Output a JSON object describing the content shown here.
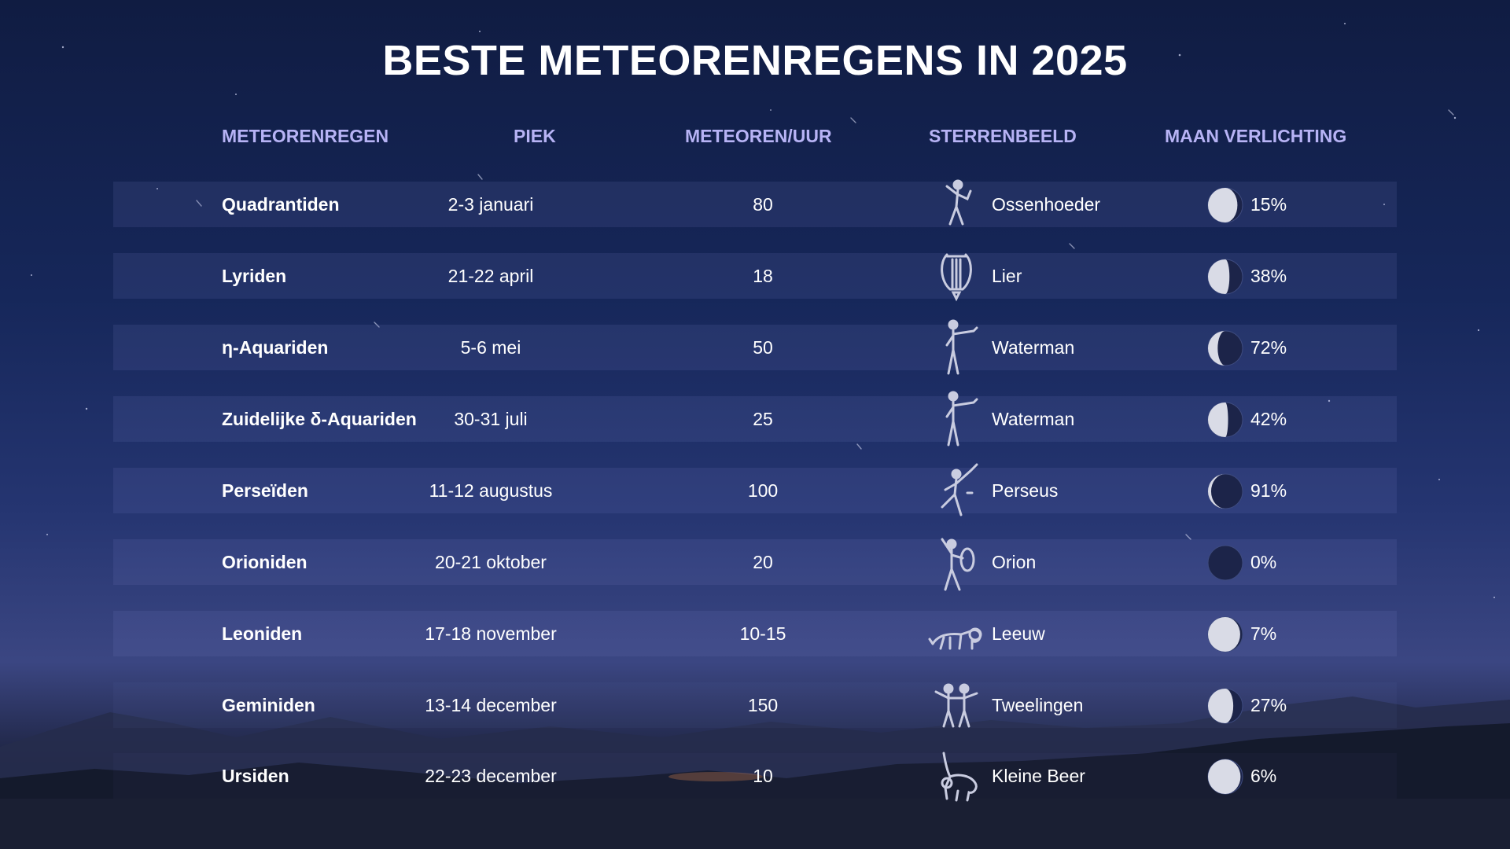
{
  "title": "BESTE METEORENREGENS IN 2025",
  "columns": {
    "shower": "METEORENREGEN",
    "peak": "PIEK",
    "rate": "METEOREN/UUR",
    "constellation": "STERRENBEELD",
    "moon": "MAAN VERLICHTING"
  },
  "colors": {
    "header": "#b7b3f5",
    "text": "#ffffff",
    "row_band": "#3a4784"
  },
  "rows": [
    {
      "name": "Quadrantiden",
      "peak": "2-3 januari",
      "rate": "80",
      "constellation": "Ossenhoeder",
      "icon": "bootes-figure-icon",
      "moon": "15%",
      "moon_fraction": 0.15
    },
    {
      "name": "Lyriden",
      "peak": "21-22 april",
      "rate": "18",
      "constellation": "Lier",
      "icon": "lyre-icon",
      "moon": "38%",
      "moon_fraction": 0.38
    },
    {
      "name": "η-Aquariden",
      "peak": "5-6 mei",
      "rate": "50",
      "constellation": "Waterman",
      "icon": "aquarius-figure-icon",
      "moon": "72%",
      "moon_fraction": 0.72
    },
    {
      "name": "Zuidelijke δ-Aquariden",
      "peak": "30-31 juli",
      "rate": "25",
      "constellation": "Waterman",
      "icon": "aquarius-figure-icon",
      "moon": "42%",
      "moon_fraction": 0.42
    },
    {
      "name": "Perseïden",
      "peak": "11-12 augustus",
      "rate": "100",
      "constellation": "Perseus",
      "icon": "perseus-figure-icon",
      "moon": "91%",
      "moon_fraction": 0.91
    },
    {
      "name": "Orioniden",
      "peak": "20-21 oktober",
      "rate": "20",
      "constellation": "Orion",
      "icon": "orion-figure-icon",
      "moon": "0%",
      "moon_fraction": 0.0
    },
    {
      "name": "Leoniden",
      "peak": "17-18 november",
      "rate": "10-15",
      "constellation": "Leeuw",
      "icon": "lion-icon",
      "moon": "7%",
      "moon_fraction": 0.07
    },
    {
      "name": "Geminiden",
      "peak": "13-14 december",
      "rate": "150",
      "constellation": "Tweelingen",
      "icon": "gemini-twins-icon",
      "moon": "27%",
      "moon_fraction": 0.27
    },
    {
      "name": "Ursiden",
      "peak": "22-23 december",
      "rate": "10",
      "constellation": "Kleine Beer",
      "icon": "bear-icon",
      "moon": "6%",
      "moon_fraction": 0.06
    }
  ]
}
